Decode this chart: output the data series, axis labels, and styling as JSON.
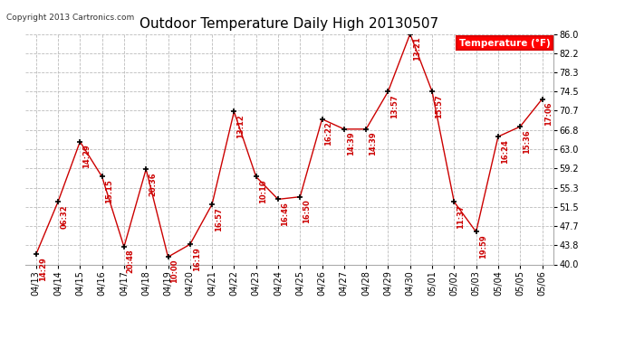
{
  "title": "Outdoor Temperature Daily High 20130507",
  "copyright": "Copyright 2013 Cartronics.com",
  "legend_label": "Temperature (°F)",
  "dates": [
    "04/13",
    "04/14",
    "04/15",
    "04/16",
    "04/17",
    "04/18",
    "04/19",
    "04/20",
    "04/21",
    "04/22",
    "04/23",
    "04/24",
    "04/25",
    "04/26",
    "04/27",
    "04/28",
    "04/29",
    "04/30",
    "05/01",
    "05/02",
    "05/03",
    "05/04",
    "05/05",
    "05/06"
  ],
  "temps": [
    42.0,
    52.5,
    64.5,
    57.5,
    43.5,
    59.0,
    41.5,
    44.0,
    52.0,
    70.5,
    57.5,
    53.0,
    53.5,
    69.0,
    67.0,
    67.0,
    74.5,
    86.0,
    74.5,
    52.5,
    46.5,
    65.5,
    67.5,
    73.0
  ],
  "times": [
    "14:29",
    "06:32",
    "14:29",
    "15:15",
    "20:48",
    "20:36",
    "10:00",
    "16:19",
    "16:57",
    "13:12",
    "10:10",
    "16:46",
    "16:50",
    "16:22",
    "14:39",
    "14:39",
    "13:57",
    "13:21",
    "15:57",
    "11:37",
    "19:59",
    "16:24",
    "15:36",
    "17:06"
  ],
  "yticks": [
    40.0,
    43.8,
    47.7,
    51.5,
    55.3,
    59.2,
    63.0,
    66.8,
    70.7,
    74.5,
    78.3,
    82.2,
    86.0
  ],
  "ylim": [
    40.0,
    86.0
  ],
  "line_color": "#cc0000",
  "marker_color": "#000000",
  "label_color": "#cc0000",
  "bg_color": "#ffffff",
  "grid_color": "#bbbbbb",
  "title_fontsize": 11,
  "legend_bg": "#ff0000",
  "legend_text_color": "#ffffff"
}
